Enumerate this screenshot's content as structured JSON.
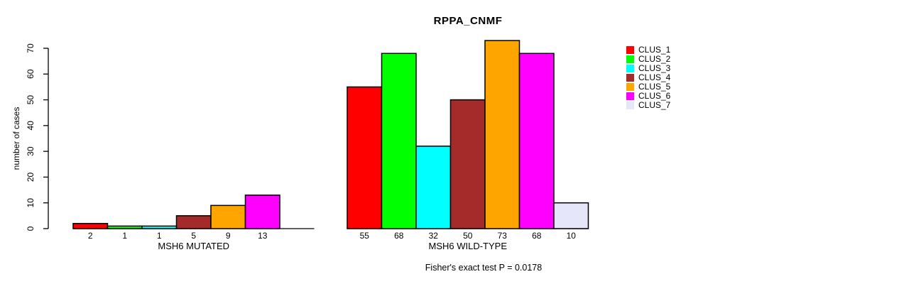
{
  "chart_data": {
    "type": "bar",
    "title": "RPPA_CNMF",
    "ylabel": "number of cases",
    "xlabel": "",
    "ylim": [
      0,
      70
    ],
    "yticks": [
      0,
      10,
      20,
      30,
      40,
      50,
      60,
      70
    ],
    "grid": false,
    "legend_position": "right",
    "series_labels": [
      "CLUS_1",
      "CLUS_2",
      "CLUS_3",
      "CLUS_4",
      "CLUS_5",
      "CLUS_6",
      "CLUS_7"
    ],
    "colors": [
      "#FF0000",
      "#00FF00",
      "#00FFFF",
      "#A52A2A",
      "#FFA500",
      "#FF00FF",
      "#E6E6FA"
    ],
    "groups": [
      {
        "label": "MSH6 MUTATED",
        "values": [
          2,
          1,
          1,
          5,
          9,
          13,
          0
        ],
        "value_labels": [
          "2",
          "1",
          "1",
          "5",
          "9",
          "13",
          ""
        ]
      },
      {
        "label": "MSH6 WILD-TYPE",
        "values": [
          55,
          68,
          32,
          50,
          73,
          68,
          10
        ],
        "value_labels": [
          "55",
          "68",
          "32",
          "50",
          "73",
          "68",
          "10"
        ]
      }
    ],
    "annotation": "Fisher's exact test P = 0.0178"
  },
  "legend": {
    "items": [
      {
        "label": "CLUS_1",
        "color": "#FF0000"
      },
      {
        "label": "CLUS_2",
        "color": "#00FF00"
      },
      {
        "label": "CLUS_3",
        "color": "#00FFFF"
      },
      {
        "label": "CLUS_4",
        "color": "#A52A2A"
      },
      {
        "label": "CLUS_5",
        "color": "#FFA500"
      },
      {
        "label": "CLUS_6",
        "color": "#FF00FF"
      },
      {
        "label": "CLUS_7",
        "color": "#E6E6FA"
      }
    ]
  }
}
